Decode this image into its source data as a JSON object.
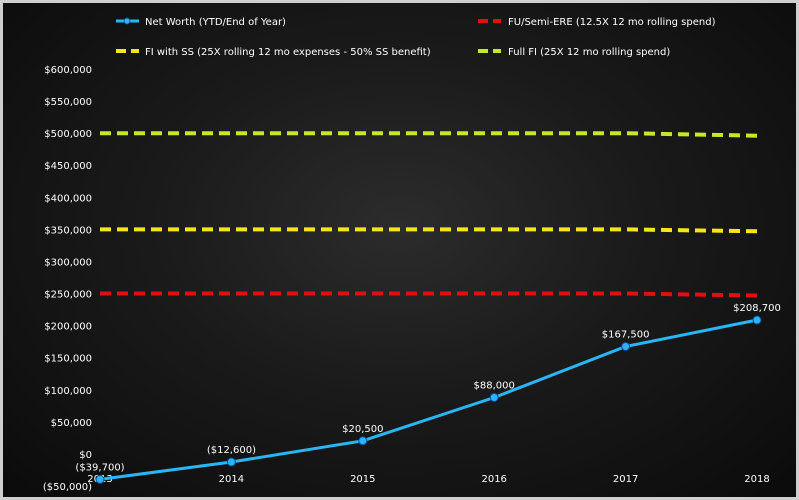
{
  "chart_data": {
    "type": "line",
    "title": "",
    "xlabel": "",
    "ylabel": "",
    "categories": [
      "2013",
      "2014",
      "2015",
      "2016",
      "2017",
      "2018"
    ],
    "ylim": [
      -50000,
      600000
    ],
    "y_ticks": [
      {
        "value": -50000,
        "label": "($50,000)"
      },
      {
        "value": 0,
        "label": "$0"
      },
      {
        "value": 50000,
        "label": "$50,000"
      },
      {
        "value": 100000,
        "label": "$100,000"
      },
      {
        "value": 150000,
        "label": "$150,000"
      },
      {
        "value": 200000,
        "label": "$200,000"
      },
      {
        "value": 250000,
        "label": "$250,000"
      },
      {
        "value": 300000,
        "label": "$300,000"
      },
      {
        "value": 350000,
        "label": "$350,000"
      },
      {
        "value": 400000,
        "label": "$400,000"
      },
      {
        "value": 450000,
        "label": "$450,000"
      },
      {
        "value": 500000,
        "label": "$500,000"
      },
      {
        "value": 550000,
        "label": "$550,000"
      },
      {
        "value": 600000,
        "label": "$600,000"
      }
    ],
    "grid": false,
    "legend_position": "top",
    "series": [
      {
        "name": "Net Worth (YTD/End of Year)",
        "style": "solid-markers",
        "color": "#29b6f6",
        "values": [
          -39700,
          -12600,
          20500,
          88000,
          167500,
          208700
        ],
        "labels": [
          "($39,700)",
          "($12,600)",
          "$20,500",
          "$88,000",
          "$167,500",
          "$208,700"
        ]
      },
      {
        "name": "FU/Semi-ERE (12.5X 12 mo rolling spend)",
        "style": "dashed",
        "color": "#e01010",
        "values": [
          250000,
          250000,
          250000,
          250000,
          250000,
          247000
        ]
      },
      {
        "name": "FI with SS  (25X rolling 12 mo expenses - 50% SS benefit)",
        "style": "dashed",
        "color": "#f5e61a",
        "values": [
          350000,
          350000,
          350000,
          350000,
          350000,
          347000
        ]
      },
      {
        "name": "Full FI  (25X 12 mo rolling spend)",
        "style": "dashed",
        "color": "#c6e82a",
        "values": [
          500000,
          500000,
          500000,
          500000,
          500000,
          496000
        ]
      }
    ]
  }
}
